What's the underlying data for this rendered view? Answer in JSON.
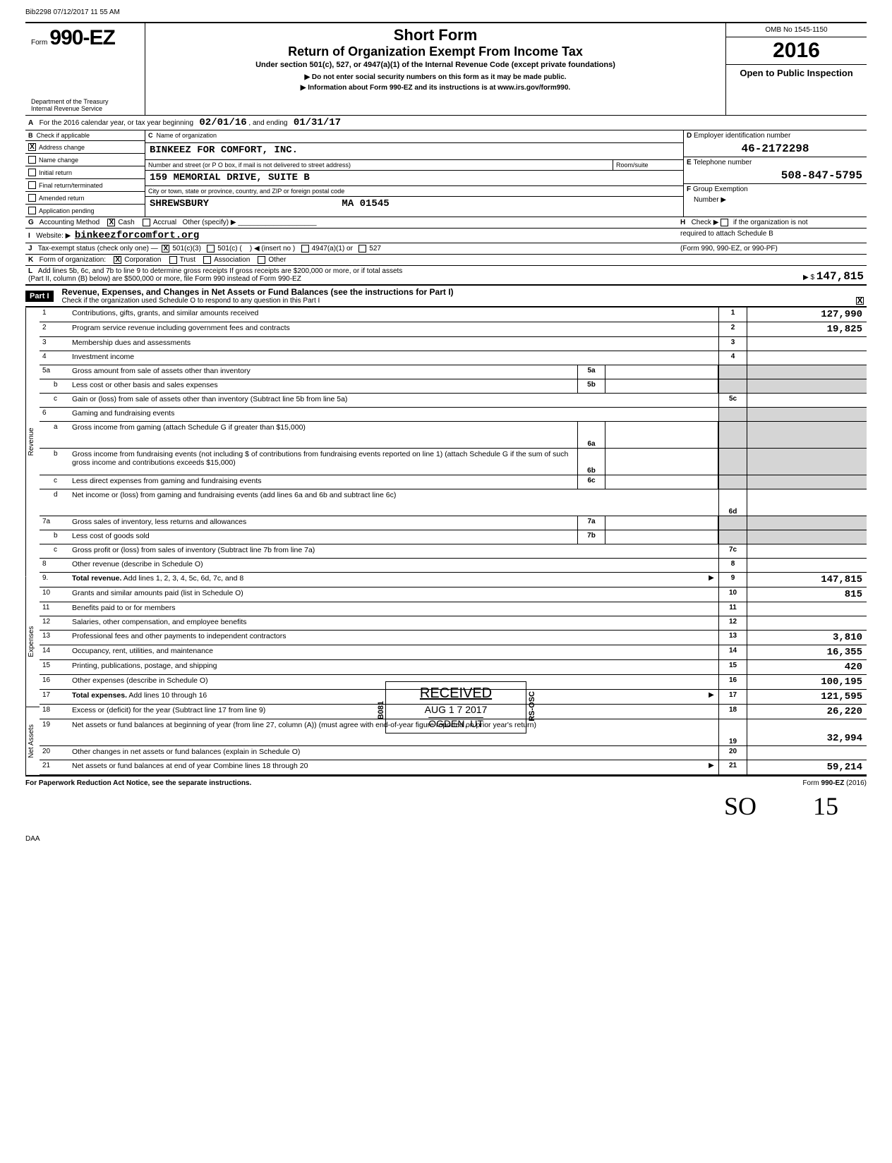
{
  "print_header": "Bib2298 07/12/2017 11 55 AM",
  "form": {
    "prefix": "Form",
    "number": "990-EZ",
    "dept1": "Department of the Treasury",
    "dept2": "Internal Revenue Service"
  },
  "title": {
    "line1": "Short Form",
    "line2": "Return of Organization Exempt From Income Tax",
    "sub1": "Under section 501(c), 527, or 4947(a)(1) of the Internal Revenue Code (except private foundations)",
    "sub2": "▶ Do not enter social security numbers on this form as it may be made public.",
    "sub3": "▶ Information about Form 990-EZ and its instructions is at www.irs.gov/form990."
  },
  "right": {
    "omb": "OMB No 1545-1150",
    "year": "2016",
    "open": "Open to Public Inspection"
  },
  "lineA": {
    "label": "A",
    "text": "For the 2016 calendar year, or tax year beginning",
    "begin": "02/01/16",
    "mid": ", and ending",
    "end": "01/31/17"
  },
  "lineB": {
    "label": "B",
    "header": "Check if applicable",
    "opts": [
      "Address change",
      "Name change",
      "Initial return",
      "Final return/terminated",
      "Amended return",
      "Application pending"
    ],
    "checked_index": 0
  },
  "lineC": {
    "label": "C",
    "name_label": "Name of organization",
    "name": "BINKEEZ FOR COMFORT, INC.",
    "addr_label": "Number and street (or P O  box, if mail is not delivered to street address)",
    "room_label": "Room/suite",
    "addr": "159 MEMORIAL DRIVE, SUITE B",
    "city_label": "City or town, state or province, country, and ZIP or foreign postal code",
    "city": "SHREWSBURY",
    "state_zip": "MA  01545"
  },
  "lineD": {
    "label": "D",
    "header": "Employer identification number",
    "value": "46-2172298"
  },
  "lineE": {
    "label": "E",
    "header": "Telephone number",
    "value": "508-847-5795"
  },
  "lineF": {
    "label": "F",
    "header": "Group Exemption",
    "sub": "Number  ▶"
  },
  "lineG": {
    "label": "G",
    "text": "Accounting Method",
    "cash": "Cash",
    "accrual": "Accrual",
    "other": "Other (specify) ▶",
    "cash_checked": true
  },
  "lineH": {
    "label": "H",
    "text1": "Check ▶",
    "text2": "if the organization is not",
    "text3": "required to attach Schedule B",
    "text4": "(Form 990, 990-EZ, or 990-PF)"
  },
  "lineI": {
    "label": "I",
    "text": "Website: ▶",
    "value": "binkeezforcomfort.org"
  },
  "lineJ": {
    "label": "J",
    "text": "Tax-exempt status (check only one) —",
    "o1": "501(c)(3)",
    "o2": "501(c) (",
    "o2b": ") ◀ (insert no )",
    "o3": "4947(a)(1) or",
    "o4": "527",
    "checked": true
  },
  "lineK": {
    "label": "K",
    "text": "Form of organization:",
    "o1": "Corporation",
    "o2": "Trust",
    "o3": "Association",
    "o4": "Other",
    "checked": true
  },
  "lineL": {
    "label": "L",
    "text1": "Add lines 5b, 6c, and 7b to line 9 to determine gross receipts  If gross receipts are $200,000 or more, or if total assets",
    "text2": "(Part II, column (B) below) are $500,000 or more, file Form 990 instead of Form 990-EZ",
    "prefix": "▶  $",
    "value": "147,815"
  },
  "partI": {
    "label": "Part I",
    "title": "Revenue, Expenses, and Changes in Net Assets or Fund Balances (see the instructions for Part I)",
    "check": "Check if the organization used Schedule O to respond to any question in this Part I",
    "checked": true
  },
  "side_labels": {
    "rev": "Revenue",
    "exp": "Expenses",
    "net": "Net Assets"
  },
  "lines": [
    {
      "n": "1",
      "d": "Contributions, gifts, grants, and similar amounts received",
      "c": "1",
      "v": "127,990"
    },
    {
      "n": "2",
      "d": "Program service revenue including government fees and contracts",
      "c": "2",
      "v": "19,825"
    },
    {
      "n": "3",
      "d": "Membership dues and assessments",
      "c": "3",
      "v": ""
    },
    {
      "n": "4",
      "d": "Investment income",
      "c": "4",
      "v": ""
    },
    {
      "n": "5a",
      "d": "Gross amount from sale of assets other than inventory",
      "in": "5a",
      "iv": "",
      "sh": true
    },
    {
      "n": "b",
      "sub": true,
      "d": "Less cost or other basis and sales expenses",
      "in": "5b",
      "iv": "",
      "sh": true
    },
    {
      "n": "c",
      "sub": true,
      "d": "Gain or (loss) from sale of assets other than inventory (Subtract line 5b from line 5a)",
      "c": "5c",
      "v": ""
    },
    {
      "n": "6",
      "d": "Gaming and fundraising events",
      "sh": true,
      "nocell": true
    },
    {
      "n": "a",
      "sub": true,
      "d": "Gross income from gaming (attach Schedule G if greater than $15,000)",
      "in": "6a",
      "iv": "",
      "sh": true,
      "tall": true
    },
    {
      "n": "b",
      "sub": true,
      "d": "Gross income from fundraising events (not including   $                              of contributions from fundraising events reported on line 1) (attach Schedule G if the sum of such gross income and contributions exceeds $15,000)",
      "in": "6b",
      "iv": "",
      "sh": true,
      "tall": true
    },
    {
      "n": "c",
      "sub": true,
      "d": "Less direct expenses from gaming and fundraising events",
      "in": "6c",
      "iv": "",
      "sh": true
    },
    {
      "n": "d",
      "sub": true,
      "d": "Net income or (loss) from gaming and fundraising events (add lines 6a and 6b and subtract line 6c)",
      "c": "6d",
      "v": "",
      "tall": true
    },
    {
      "n": "7a",
      "d": "Gross sales of inventory, less returns and allowances",
      "in": "7a",
      "iv": "",
      "sh": true
    },
    {
      "n": "b",
      "sub": true,
      "d": "Less cost of goods sold",
      "in": "7b",
      "iv": "",
      "sh": true
    },
    {
      "n": "c",
      "sub": true,
      "d": "Gross profit or (loss) from sales of inventory (Subtract line 7b from line 7a)",
      "c": "7c",
      "v": ""
    },
    {
      "n": "8",
      "d": "Other revenue (describe in Schedule O)",
      "c": "8",
      "v": ""
    },
    {
      "n": "9.",
      "d": "Total revenue. Add lines 1, 2, 3, 4, 5c, 6d, 7c, and 8",
      "c": "9",
      "v": "147,815",
      "bold": true,
      "arrow": true
    },
    {
      "n": "10",
      "d": "Grants and similar amounts paid (list in Schedule O)",
      "c": "10",
      "v": "815"
    },
    {
      "n": "11",
      "d": "Benefits paid to or for members",
      "c": "11",
      "v": ""
    },
    {
      "n": "12",
      "d": "Salaries, other compensation, and employee benefits",
      "c": "12",
      "v": ""
    },
    {
      "n": "13",
      "d": "Professional fees and other payments to independent contractors",
      "c": "13",
      "v": "3,810"
    },
    {
      "n": "14",
      "d": "Occupancy, rent, utilities, and maintenance",
      "c": "14",
      "v": "16,355"
    },
    {
      "n": "15",
      "d": "Printing, publications, postage, and shipping",
      "c": "15",
      "v": "420"
    },
    {
      "n": "16",
      "d": "Other expenses (describe in Schedule O)",
      "c": "16",
      "v": "100,195"
    },
    {
      "n": "17",
      "d": "Total expenses. Add lines 10 through 16",
      "c": "17",
      "v": "121,595",
      "bold": true,
      "arrow": true
    },
    {
      "n": "18",
      "d": "Excess or (deficit) for the year (Subtract line 17 from line 9)",
      "c": "18",
      "v": "26,220"
    },
    {
      "n": "19",
      "d": "Net assets or fund balances at beginning of year (from line 27, column (A)) (must agree with end-of-year figure reported on prior year's return)",
      "c": "19",
      "v": "32,994",
      "tall": true
    },
    {
      "n": "20",
      "d": "Other changes in net assets or fund balances (explain in Schedule O)",
      "c": "20",
      "v": ""
    },
    {
      "n": "21",
      "d": "Net assets or fund balances at end of year  Combine lines 18 through 20",
      "c": "21",
      "v": "59,214",
      "arrow": true
    }
  ],
  "stamp": {
    "received": "RECEIVED",
    "date": "AUG 1 7 2017",
    "loc": "OGDEN, UT",
    "side1": "B081",
    "side2": "RS-OSC"
  },
  "footer": {
    "left": "For Paperwork Reduction Act Notice, see the separate instructions.",
    "right": "Form 990-EZ (2016)",
    "daa": "DAA"
  },
  "signature": "SO",
  "page_num": "15"
}
